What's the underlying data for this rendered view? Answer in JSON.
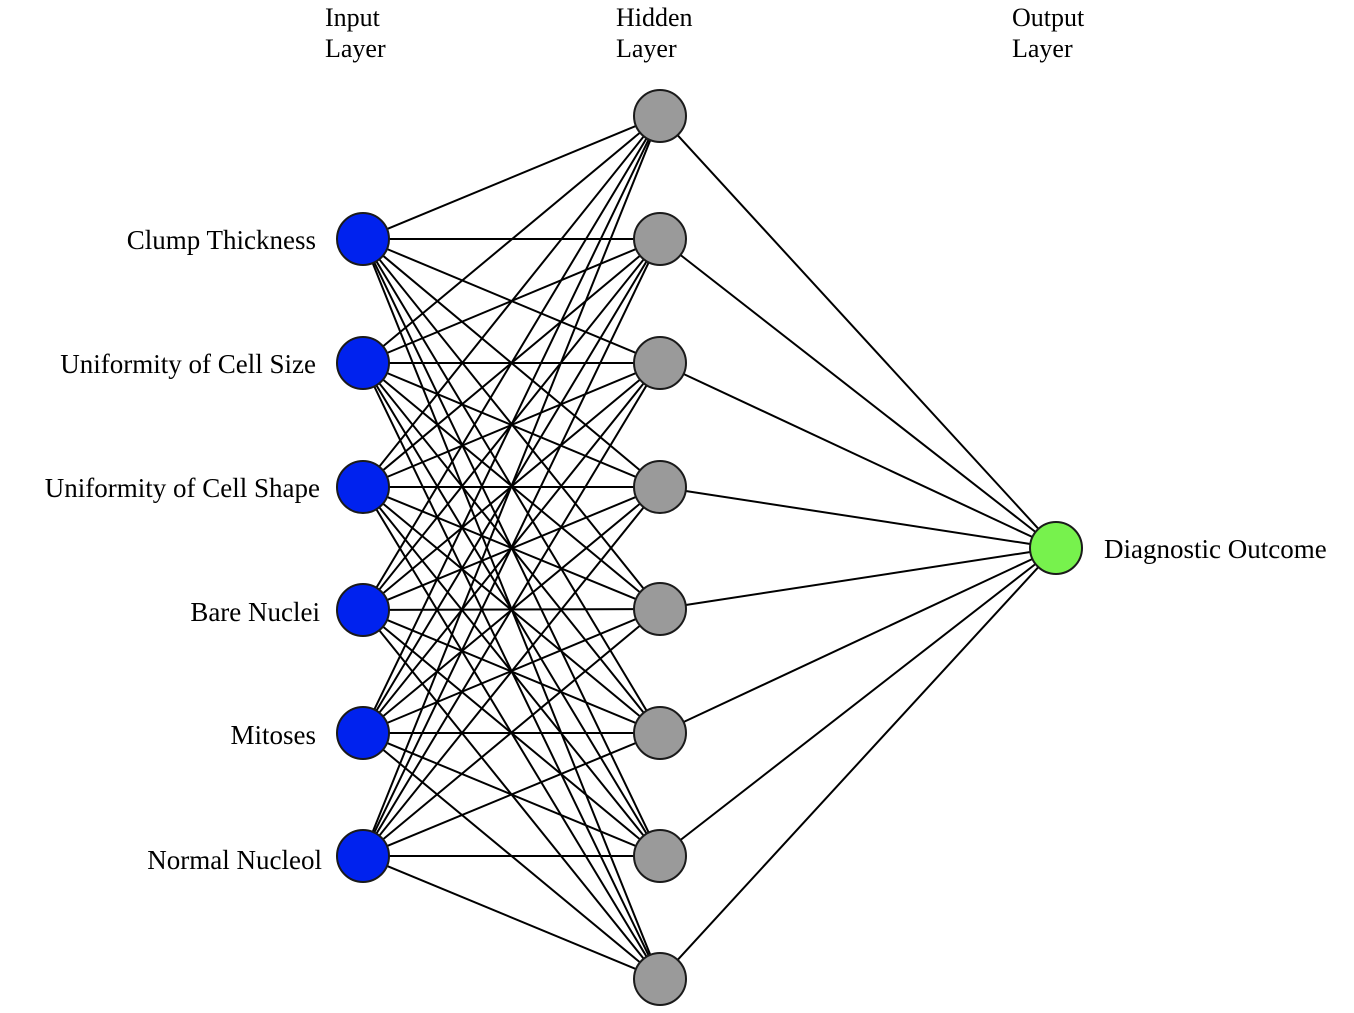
{
  "layers": {
    "input": {
      "title_line1": "Input",
      "title_line2": "Layer",
      "nodes": [
        "Clump Thickness",
        "Uniformity of Cell Size",
        "Uniformity of Cell Shape",
        "Bare Nuclei",
        "Mitoses",
        "Normal Nucleol"
      ]
    },
    "hidden": {
      "title_line1": "Hidden",
      "title_line2": "Layer",
      "node_count": 8
    },
    "output": {
      "title_line1": "Output",
      "title_line2": "Layer",
      "nodes": [
        "Diagnostic Outcome"
      ]
    }
  },
  "connectivity": "fully-connected",
  "colors": {
    "input_node": "#0022ee",
    "hidden_node": "#9a9a9a",
    "output_node": "#77f24d",
    "edge": "#000000"
  }
}
